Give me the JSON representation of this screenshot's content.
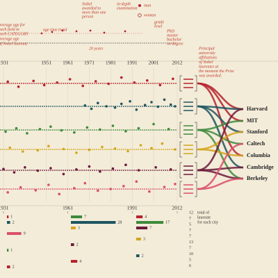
{
  "legend": {
    "avg_field": [
      "average age for",
      "each field in",
      "each CATEGORY"
    ],
    "trend": "age time trend",
    "shared": [
      "Nobel",
      "awarded to",
      "more than one",
      "person"
    ],
    "indepth": [
      "in-depth",
      "examination"
    ],
    "man": "man",
    "woman": "woman",
    "grade": [
      "grade",
      "level"
    ],
    "degrees": [
      "PhD",
      "master",
      "bachelor",
      "no degree"
    ],
    "avg_all": [
      "average age",
      "of Nobel laureate"
    ],
    "scale": "20 years"
  },
  "affiliation_note": [
    "Principal",
    "university",
    "affiliations",
    "of Nobel",
    "laureates at",
    "the moment the Prize",
    "was awarded."
  ],
  "top_years": [
    1931,
    1951,
    1961,
    1971,
    1981,
    1991,
    2001,
    2012
  ],
  "bands": [
    {
      "color": "#b5222c",
      "avg": 56,
      "points": [
        [
          1933,
          60
        ],
        [
          1938,
          48
        ],
        [
          1945,
          62
        ],
        [
          1950,
          52
        ],
        [
          1956,
          58
        ],
        [
          1962,
          66
        ],
        [
          1968,
          50
        ],
        [
          1974,
          61
        ],
        [
          1980,
          55
        ],
        [
          1986,
          70
        ],
        [
          1992,
          58
        ],
        [
          1998,
          63
        ],
        [
          2004,
          52
        ],
        [
          2010,
          67
        ]
      ]
    },
    {
      "color": "#1e5560",
      "avg": 58,
      "points": [
        [
          1969,
          60
        ],
        [
          1972,
          52
        ],
        [
          1975,
          66
        ],
        [
          1979,
          58
        ],
        [
          1983,
          55
        ],
        [
          1986,
          64
        ],
        [
          1990,
          70
        ],
        [
          1993,
          50
        ],
        [
          1997,
          61
        ],
        [
          2000,
          68
        ],
        [
          2003,
          57
        ],
        [
          2006,
          74
        ],
        [
          2009,
          62
        ],
        [
          2011,
          58
        ]
      ]
    },
    {
      "color": "#3e8a3c",
      "avg": 56,
      "points": [
        [
          1932,
          52
        ],
        [
          1937,
          60
        ],
        [
          1942,
          48
        ],
        [
          1948,
          58
        ],
        [
          1953,
          64
        ],
        [
          1958,
          55
        ],
        [
          1964,
          50
        ],
        [
          1970,
          62
        ],
        [
          1976,
          57
        ],
        [
          1982,
          66
        ],
        [
          1988,
          53
        ],
        [
          1994,
          60
        ],
        [
          2001,
          70
        ],
        [
          2008,
          58
        ]
      ]
    },
    {
      "color": "#d3a51c",
      "avg": 60,
      "points": [
        [
          1934,
          64
        ],
        [
          1940,
          55
        ],
        [
          1947,
          58
        ],
        [
          1952,
          68
        ],
        [
          1959,
          61
        ],
        [
          1965,
          52
        ],
        [
          1971,
          59
        ],
        [
          1977,
          66
        ],
        [
          1983,
          62
        ],
        [
          1989,
          56
        ],
        [
          1995,
          70
        ],
        [
          2000,
          63
        ],
        [
          2005,
          74
        ],
        [
          2011,
          60
        ]
      ]
    },
    {
      "color": "#6b1a3a",
      "avg": 55,
      "points": [
        [
          1931,
          58
        ],
        [
          1936,
          50
        ],
        [
          1941,
          62
        ],
        [
          1947,
          54
        ],
        [
          1953,
          60
        ],
        [
          1959,
          46
        ],
        [
          1965,
          57
        ],
        [
          1971,
          64
        ],
        [
          1976,
          52
        ],
        [
          1982,
          59
        ],
        [
          1988,
          68
        ],
        [
          1994,
          55
        ],
        [
          2002,
          62
        ],
        [
          2009,
          57
        ]
      ]
    },
    {
      "color": "#d9506a",
      "avg": 48,
      "points": [
        [
          1933,
          40
        ],
        [
          1939,
          52
        ],
        [
          1946,
          45
        ],
        [
          1952,
          58
        ],
        [
          1957,
          36
        ],
        [
          1964,
          50
        ],
        [
          1969,
          62
        ],
        [
          1975,
          44
        ],
        [
          1981,
          48
        ],
        [
          1987,
          55
        ],
        [
          1993,
          66
        ],
        [
          1999,
          42
        ],
        [
          2006,
          53
        ],
        [
          2011,
          60
        ]
      ]
    }
  ],
  "universities": [
    "Harvard",
    "MIT",
    "Stanford",
    "Caltech",
    "Columbia",
    "Cambridge",
    "Berkeley"
  ],
  "bottom_years": [
    1931,
    1961,
    1991,
    2012
  ],
  "mini_bars": [
    {
      "row": 0,
      "col": 0,
      "value": 1,
      "color": "#b5222c"
    },
    {
      "row": 1,
      "col": 0,
      "value": 2,
      "color": "#1e5560"
    },
    {
      "row": 3,
      "col": 0,
      "value": 9,
      "color": "#d9506a"
    },
    {
      "row": 6,
      "col": 0,
      "value": 1,
      "color": "#3e8a3c"
    },
    {
      "row": 9,
      "col": 0,
      "value": 2,
      "color": "#b5222c"
    },
    {
      "row": 0,
      "col": 1,
      "value": 7,
      "color": "#3e8a3c"
    },
    {
      "row": 1,
      "col": 1,
      "value": 28,
      "color": "#1e5560"
    },
    {
      "row": 2,
      "col": 1,
      "value": 3,
      "color": "#d3a51c"
    },
    {
      "row": 5,
      "col": 1,
      "value": 2,
      "color": "#6b1a3a"
    },
    {
      "row": 8,
      "col": 1,
      "value": 4,
      "color": "#b5222c"
    },
    {
      "row": 0,
      "col": 2,
      "value": 4,
      "color": "#b5222c"
    },
    {
      "row": 1,
      "col": 2,
      "value": 17,
      "color": "#3e8a3c"
    },
    {
      "row": 2,
      "col": 2,
      "value": 7,
      "color": "#6b1a3a"
    },
    {
      "row": 4,
      "col": 2,
      "value": 3,
      "color": "#d3a51c"
    },
    {
      "row": 7,
      "col": 2,
      "value": 2,
      "color": "#1e5560"
    }
  ],
  "totals": [
    12,
    7,
    5,
    7,
    7,
    13,
    7,
    10,
    5,
    6
  ],
  "totals_label": [
    "total of",
    "laureate",
    "for each city"
  ]
}
